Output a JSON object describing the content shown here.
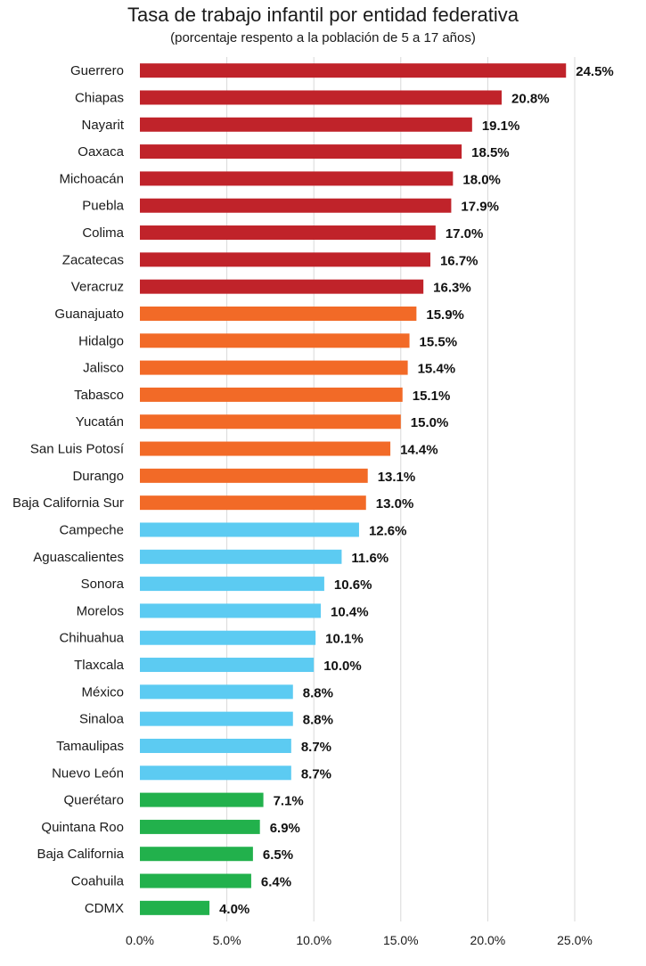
{
  "chart_data": {
    "type": "bar",
    "orientation": "horizontal",
    "title": "Tasa de trabajo infantil por entidad federativa",
    "subtitle": "(porcentaje respento a la población de 5 a 17 años)",
    "xlim": [
      0,
      25
    ],
    "ticks": [
      0,
      5,
      10,
      15,
      20,
      25
    ],
    "tick_labels": [
      "0.0%",
      "5.0%",
      "10.0%",
      "15.0%",
      "20.0%",
      "25.0%"
    ],
    "grid": true,
    "categories": [
      "Guerrero",
      "Chiapas",
      "Nayarit",
      "Oaxaca",
      "Michoacán",
      "Puebla",
      "Colima",
      "Zacatecas",
      "Veracruz",
      "Guanajuato",
      "Hidalgo",
      "Jalisco",
      "Tabasco",
      "Yucatán",
      "San Luis Potosí",
      "Durango",
      "Baja California Sur",
      "Campeche",
      "Aguascalientes",
      "Sonora",
      "Morelos",
      "Chihuahua",
      "Tlaxcala",
      "México",
      "Sinaloa",
      "Tamaulipas",
      "Nuevo León",
      "Querétaro",
      "Quintana Roo",
      "Baja California",
      "Coahuila",
      "CDMX"
    ],
    "values": [
      24.5,
      20.8,
      19.1,
      18.5,
      18.0,
      17.9,
      17.0,
      16.7,
      16.3,
      15.9,
      15.5,
      15.4,
      15.1,
      15.0,
      14.4,
      13.1,
      13.0,
      12.6,
      11.6,
      10.6,
      10.4,
      10.1,
      10.0,
      8.8,
      8.8,
      8.7,
      8.7,
      7.1,
      6.9,
      6.5,
      6.4,
      4.0
    ],
    "value_labels": [
      "24.5%",
      "20.8%",
      "19.1%",
      "18.5%",
      "18.0%",
      "17.9%",
      "17.0%",
      "16.7%",
      "16.3%",
      "15.9%",
      "15.5%",
      "15.4%",
      "15.1%",
      "15.0%",
      "14.4%",
      "13.1%",
      "13.0%",
      "12.6%",
      "11.6%",
      "10.6%",
      "10.4%",
      "10.1%",
      "10.0%",
      "8.8%",
      "8.8%",
      "8.7%",
      "8.7%",
      "7.1%",
      "6.9%",
      "6.5%",
      "6.4%",
      "4.0%"
    ],
    "color_groups": [
      0,
      0,
      0,
      0,
      0,
      0,
      0,
      0,
      0,
      1,
      1,
      1,
      1,
      1,
      1,
      1,
      1,
      2,
      2,
      2,
      2,
      2,
      2,
      2,
      2,
      2,
      2,
      3,
      3,
      3,
      3,
      3
    ],
    "colors": [
      "#c0232a",
      "#f26a27",
      "#5ccbf2",
      "#22b14c"
    ]
  }
}
